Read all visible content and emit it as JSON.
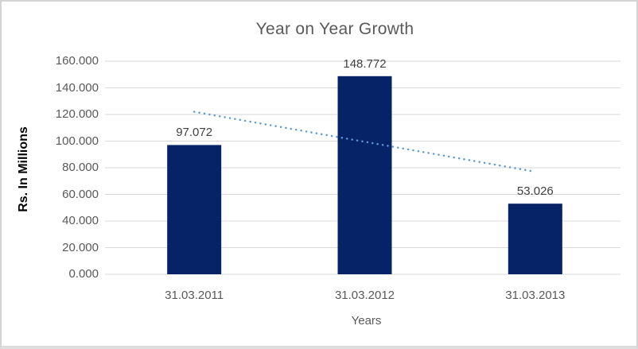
{
  "chart_data": {
    "type": "bar",
    "title": "Year on Year Growth",
    "xlabel": "Years",
    "ylabel": "Rs. In Millions",
    "categories": [
      "31.03.2011",
      "31.03.2012",
      "31.03.2013"
    ],
    "values": [
      97.072,
      148.772,
      53.026
    ],
    "value_labels": [
      "97.072",
      "148.772",
      "53.026"
    ],
    "y_ticks": [
      "160.000",
      "140.000",
      "120.000",
      "100.000",
      "80.000",
      "60.000",
      "40.000",
      "20.000",
      "0.000"
    ],
    "ylim": [
      0,
      160
    ],
    "y_tick_step": 20,
    "grid": true,
    "legend": false,
    "trendline": {
      "type": "linear",
      "style": "dotted",
      "start_value": 122,
      "end_value": 77
    },
    "colors": {
      "bar": "#052366",
      "trendline": "#5B9BD5",
      "gridline": "#D9D9D9",
      "title_text": "#595959",
      "axis_text": "#595959",
      "data_label_text": "#404040",
      "y_axis_title_text": "#000000",
      "background": "#FFFFFF"
    }
  }
}
